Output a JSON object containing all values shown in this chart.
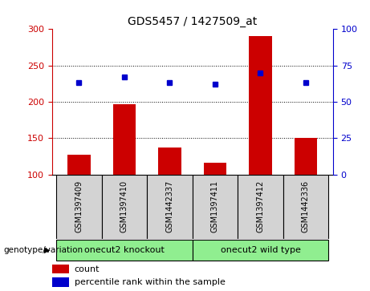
{
  "title": "GDS5457 / 1427509_at",
  "samples": [
    "GSM1397409",
    "GSM1397410",
    "GSM1442337",
    "GSM1397411",
    "GSM1397412",
    "GSM1442336"
  ],
  "counts": [
    127,
    197,
    137,
    116,
    290,
    150
  ],
  "percentile_ranks": [
    63,
    67,
    63,
    62,
    70,
    63
  ],
  "ylim_left": [
    100,
    300
  ],
  "ylim_right": [
    0,
    100
  ],
  "yticks_left": [
    100,
    150,
    200,
    250,
    300
  ],
  "yticks_right": [
    0,
    25,
    50,
    75,
    100
  ],
  "group_boundaries": [
    [
      -0.5,
      2.5,
      "onecut2 knockout"
    ],
    [
      2.5,
      5.5,
      "onecut2 wild type"
    ]
  ],
  "group_label": "genotype/variation",
  "bar_color": "#CC0000",
  "dot_color": "#0000CC",
  "bar_bottom": 100,
  "background_color": "#d3d3d3",
  "left_axis_color": "#CC0000",
  "right_axis_color": "#0000CC",
  "green_color": "#90EE90",
  "legend_items": [
    "count",
    "percentile rank within the sample"
  ]
}
